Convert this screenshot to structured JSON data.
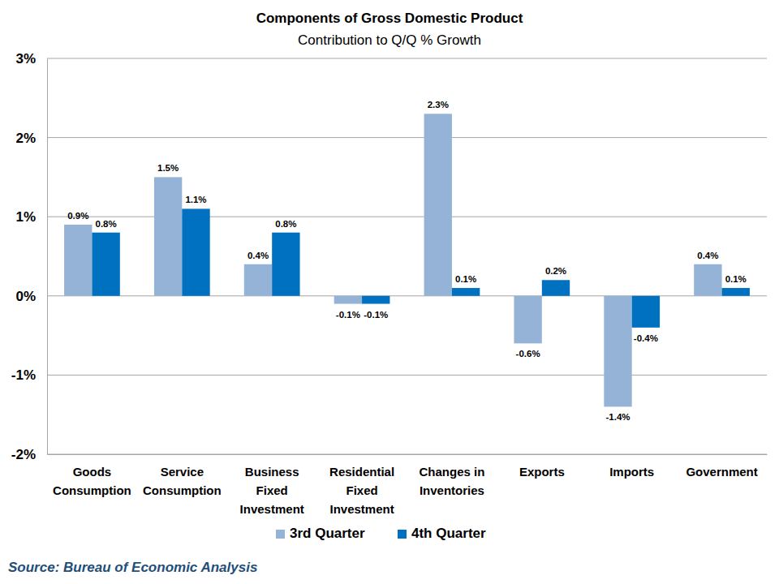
{
  "chart_data": {
    "type": "bar",
    "title": "Components of Gross Domestic Product",
    "subtitle": "Contribution to Q/Q % Growth",
    "source": "Source: Bureau of Economic Analysis",
    "categories": [
      "Goods Consumption",
      "Service Consumption",
      "Business Fixed Investment",
      "Residential Fixed Investment",
      "Changes in Inventories",
      "Exports",
      "Imports",
      "Government"
    ],
    "series": [
      {
        "name": "3rd Quarter",
        "color": "#95b3d7",
        "values": [
          0.9,
          1.5,
          0.4,
          -0.1,
          2.3,
          -0.6,
          -1.4,
          0.4
        ],
        "value_labels": [
          "0.9%",
          "1.5%",
          "0.4%",
          "-0.1%",
          "2.3%",
          "-0.6%",
          "-1.4%",
          "0.4%"
        ]
      },
      {
        "name": "4th Quarter",
        "color": "#0070c0",
        "values": [
          0.8,
          1.1,
          0.8,
          -0.1,
          0.1,
          0.2,
          -0.4,
          0.1
        ],
        "value_labels": [
          "0.8%",
          "1.1%",
          "0.8%",
          "-0.1%",
          "0.1%",
          "0.2%",
          "-0.4%",
          "0.1%"
        ]
      }
    ],
    "ylim": [
      -2,
      3
    ],
    "yticks": [
      {
        "value": -2,
        "label": "-2%"
      },
      {
        "value": -1,
        "label": "-1%"
      },
      {
        "value": 0,
        "label": "0%"
      },
      {
        "value": 1,
        "label": "1%"
      },
      {
        "value": 2,
        "label": "2%"
      },
      {
        "value": 3,
        "label": "3%"
      }
    ],
    "grid": true,
    "data_labels": true,
    "legend": "bottom"
  }
}
